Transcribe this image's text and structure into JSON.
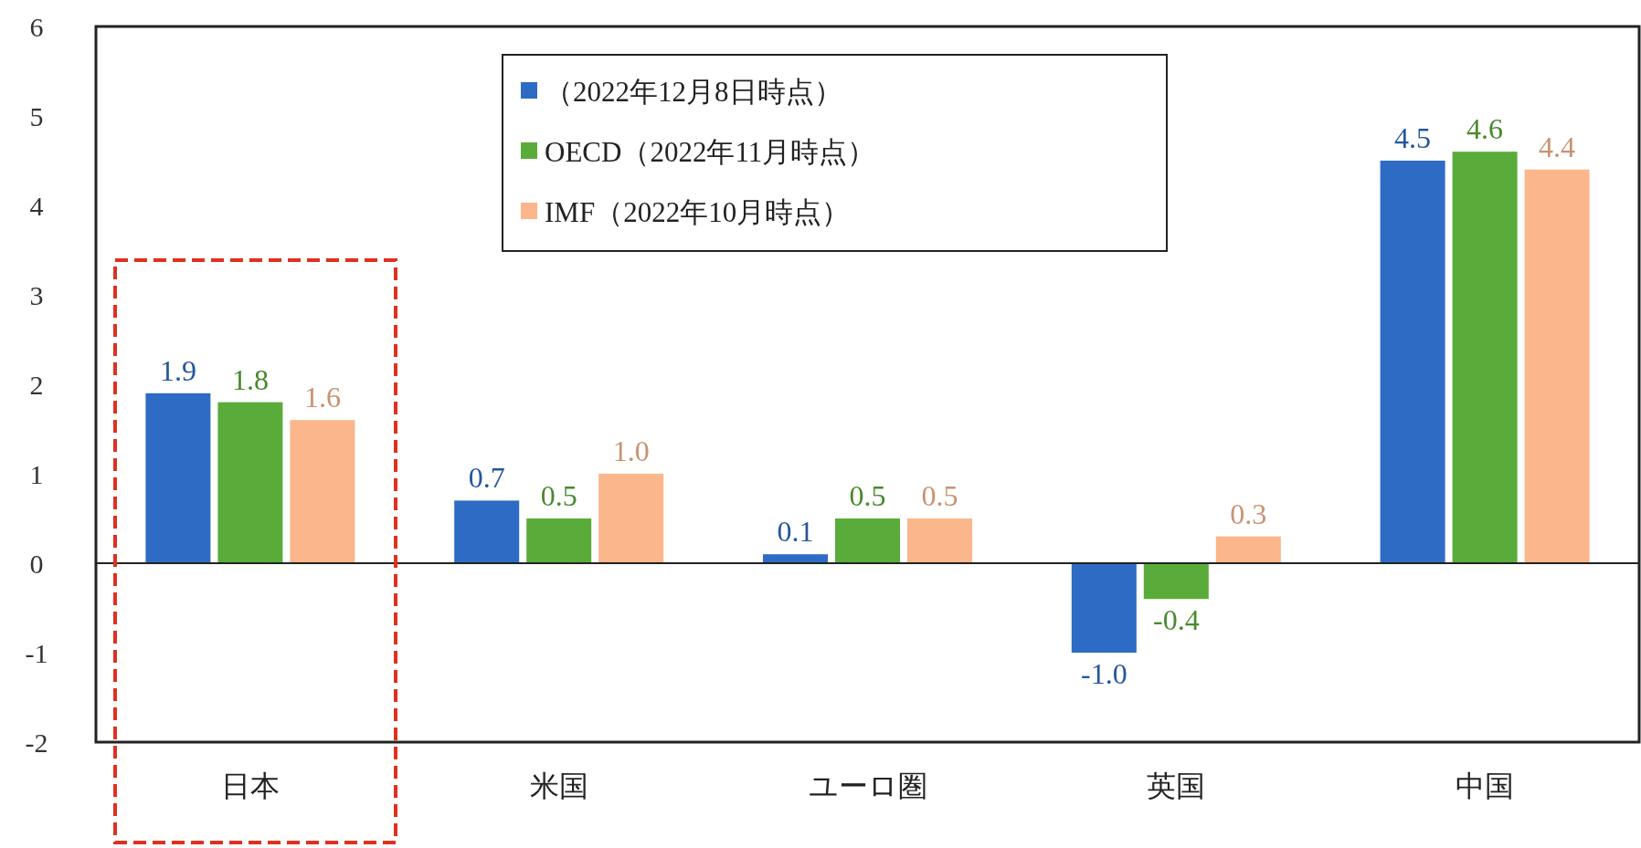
{
  "chart_data": {
    "type": "bar",
    "categories": [
      "日本",
      "米国",
      "ユーロ圏",
      "英国",
      "中国"
    ],
    "series": [
      {
        "name": "（2022年12月8日時点）",
        "color": "#2e6bc4",
        "values": [
          1.9,
          0.7,
          0.1,
          -1.0,
          4.5
        ],
        "value_labels": [
          "1.9",
          "0.7",
          "0.1",
          "-1.0",
          "4.5"
        ]
      },
      {
        "name": "OECD（2022年11月時点）",
        "color": "#5aac3a",
        "values": [
          1.8,
          0.5,
          0.5,
          -0.4,
          4.6
        ],
        "value_labels": [
          "1.8",
          "0.5",
          "0.5",
          "-0.4",
          "4.6"
        ]
      },
      {
        "name": "IMF（2022年10月時点）",
        "color": "#fbb68c",
        "values": [
          1.6,
          1.0,
          0.5,
          0.3,
          4.4
        ],
        "value_labels": [
          "1.6",
          "1.0",
          "0.5",
          "0.3",
          "4.4"
        ]
      }
    ],
    "ylim": [
      -2,
      6
    ],
    "yticks": [
      -2,
      -1,
      0,
      1,
      2,
      3,
      4,
      5,
      6
    ],
    "legend": "top"
  }
}
